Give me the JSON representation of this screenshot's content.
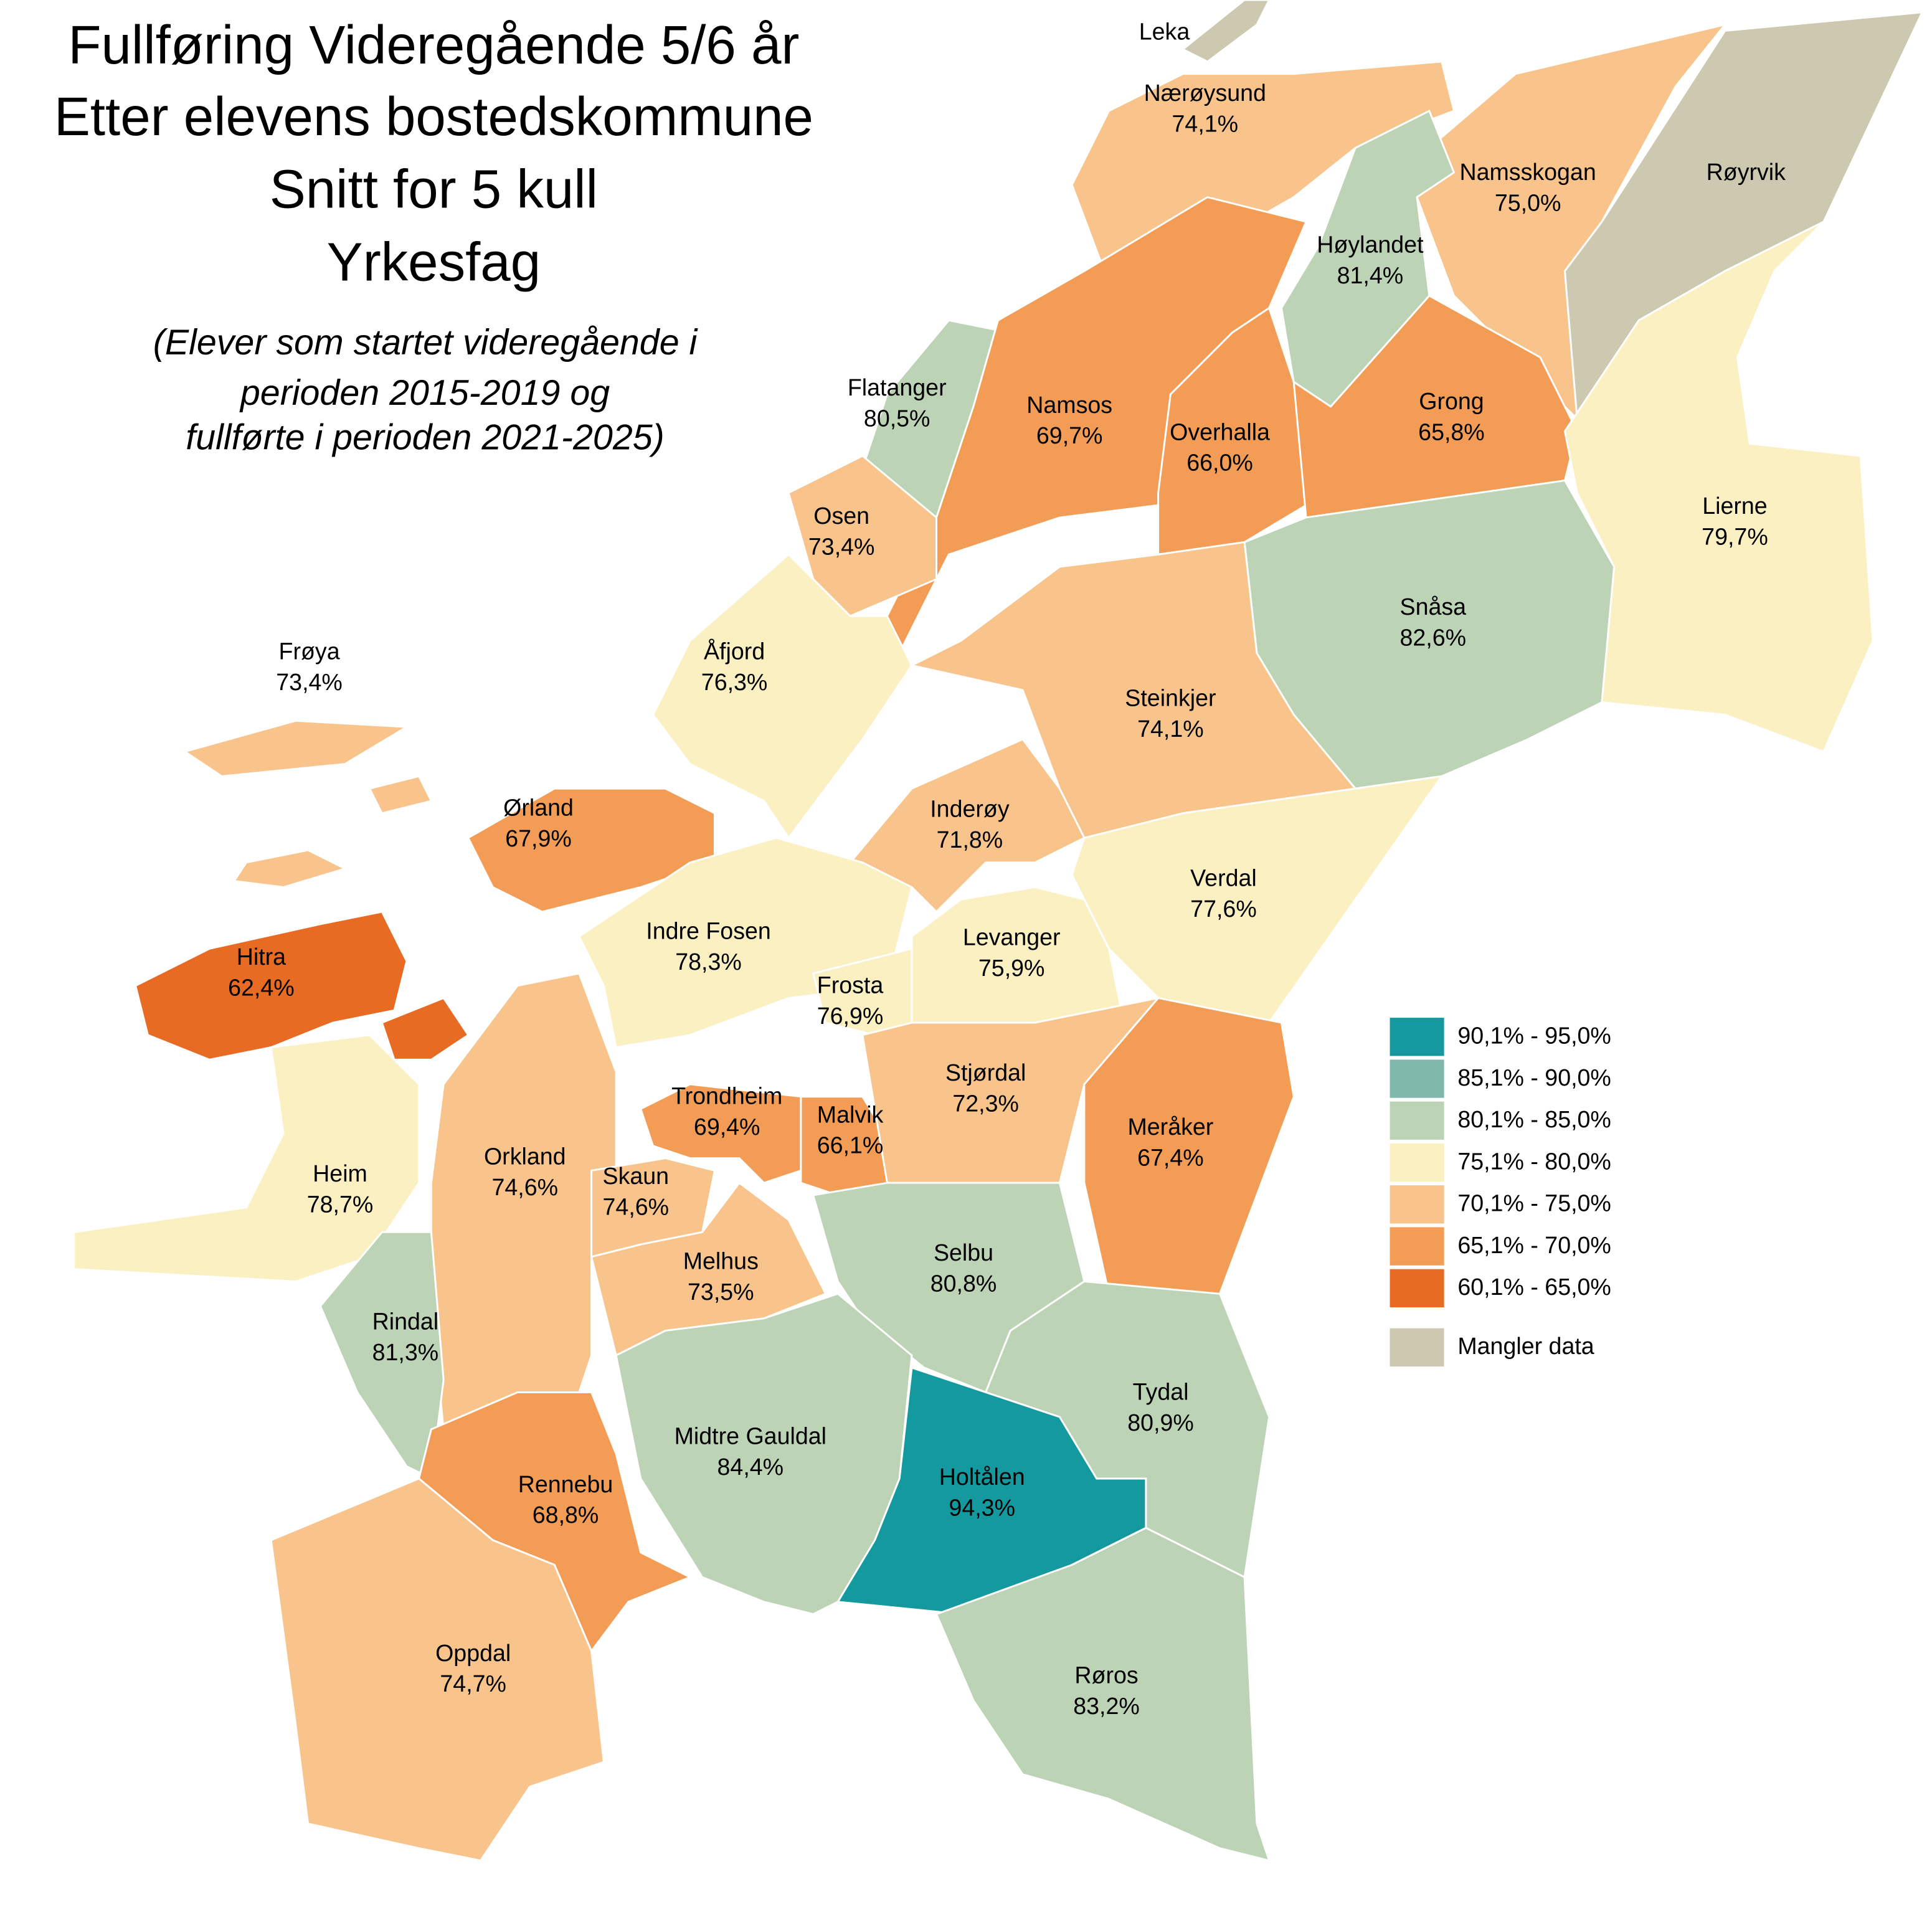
{
  "title": [
    "Fullføring Videregående 5/6 år",
    "Etter elevens bostedskommune",
    "Snitt for 5 kull",
    "Yrkesfag"
  ],
  "subtitle": [
    "(Elever som startet videregående i",
    "perioden 2015-2019 og",
    "fullførte i perioden 2021-2025)"
  ],
  "regions": [
    {
      "name": "Leka",
      "color": "#cdc8b0"
    },
    {
      "name": "Nærøysund",
      "value": "74,1%",
      "color": "#f8c48b"
    },
    {
      "name": "Namsskogan",
      "value": "75,0%",
      "color": "#f8c48b"
    },
    {
      "name": "Røyrvik",
      "color": "#cdc8b0"
    },
    {
      "name": "Høylandet",
      "value": "81,4%",
      "color": "#bcd4b5"
    },
    {
      "name": "Flatanger",
      "value": "80,5%",
      "color": "#bcd4b5"
    },
    {
      "name": "Namsos",
      "value": "69,7%",
      "color": "#f39c55"
    },
    {
      "name": "Overhalla",
      "value": "66,0%",
      "color": "#f39c55"
    },
    {
      "name": "Grong",
      "value": "65,8%",
      "color": "#f39c55"
    },
    {
      "name": "Osen",
      "value": "73,4%",
      "color": "#f8c48b"
    },
    {
      "name": "Lierne",
      "value": "79,7%",
      "color": "#fbf0c2"
    },
    {
      "name": "Snåsa",
      "value": "82,6%",
      "color": "#bcd4b5"
    },
    {
      "name": "Frøya",
      "value": "73,4%",
      "color": "#f8c48b"
    },
    {
      "name": "Åfjord",
      "value": "76,3%",
      "color": "#fbf0c2"
    },
    {
      "name": "Steinkjer",
      "value": "74,1%",
      "color": "#f8c48b"
    },
    {
      "name": "Ørland",
      "value": "67,9%",
      "color": "#f39c55"
    },
    {
      "name": "Inderøy",
      "value": "71,8%",
      "color": "#f8c48b"
    },
    {
      "name": "Verdal",
      "value": "77,6%",
      "color": "#fbf0c2"
    },
    {
      "name": "Indre Fosen",
      "value": "78,3%",
      "color": "#fbf0c2"
    },
    {
      "name": "Levanger",
      "value": "75,9%",
      "color": "#fbf0c2"
    },
    {
      "name": "Hitra",
      "value": "62,4%",
      "color": "#e86b24"
    },
    {
      "name": "Frosta",
      "value": "76,9%",
      "color": "#fbf0c2"
    },
    {
      "name": "Trondheim",
      "value": "69,4%",
      "color": "#f39c55"
    },
    {
      "name": "Malvik",
      "value": "66,1%",
      "color": "#f39c55"
    },
    {
      "name": "Stjørdal",
      "value": "72,3%",
      "color": "#f8c48b"
    },
    {
      "name": "Meråker",
      "value": "67,4%",
      "color": "#f39c55"
    },
    {
      "name": "Orkland",
      "value": "74,6%",
      "color": "#f8c48b"
    },
    {
      "name": "Skaun",
      "value": "74,6%",
      "color": "#f8c48b"
    },
    {
      "name": "Heim",
      "value": "78,7%",
      "color": "#fbf0c2"
    },
    {
      "name": "Melhus",
      "value": "73,5%",
      "color": "#f8c48b"
    },
    {
      "name": "Selbu",
      "value": "80,8%",
      "color": "#bcd4b5"
    },
    {
      "name": "Rindal",
      "value": "81,3%",
      "color": "#bcd4b5"
    },
    {
      "name": "Tydal",
      "value": "80,9%",
      "color": "#bcd4b5"
    },
    {
      "name": "Midtre Gauldal",
      "value": "84,4%",
      "color": "#bcd4b5"
    },
    {
      "name": "Holtålen",
      "value": "94,3%",
      "color": "#14999f"
    },
    {
      "name": "Rennebu",
      "value": "68,8%",
      "color": "#f39c55"
    },
    {
      "name": "Oppdal",
      "value": "74,7%",
      "color": "#f8c48b"
    },
    {
      "name": "Røros",
      "value": "83,2%",
      "color": "#bcd4b5"
    }
  ],
  "legend": [
    {
      "label": "90,1% - 95,0%",
      "color": "#14999f"
    },
    {
      "label": "85,1% - 90,0%",
      "color": "#7fb7aa"
    },
    {
      "label": "80,1% - 85,0%",
      "color": "#bcd4b5"
    },
    {
      "label": "75,1% - 80,0%",
      "color": "#fbf0c2"
    },
    {
      "label": "70,1% - 75,0%",
      "color": "#f8c48b"
    },
    {
      "label": "65,1% - 70,0%",
      "color": "#f39c55"
    },
    {
      "label": "60,1% - 65,0%",
      "color": "#e86b24"
    },
    {
      "label": "Mangler data",
      "color": "#cdc8b0"
    }
  ]
}
